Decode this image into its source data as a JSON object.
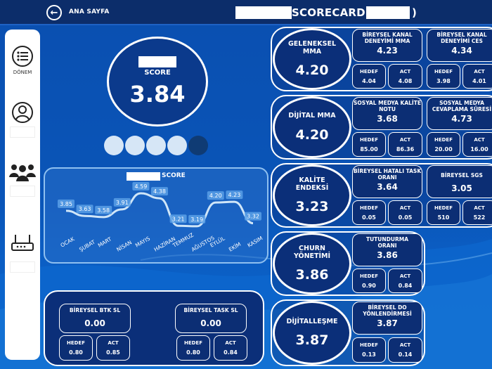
{
  "header": {
    "back_label": "ANA SAYFA",
    "title_text": "SCORECARD (",
    "title_close": ")"
  },
  "sidebar": {
    "items": [
      {
        "label": "DÖNEM",
        "icon": "list-icon"
      },
      {
        "label": "",
        "icon": "user-icon"
      },
      {
        "label": "",
        "icon": "team-icon"
      },
      {
        "label": "",
        "icon": "router-icon"
      }
    ]
  },
  "score": {
    "label": "SCORE",
    "value": "3.84"
  },
  "progress_dots": {
    "filled": 4,
    "total": 5
  },
  "chart": {
    "title": "SCORE"
  },
  "chart_data": {
    "type": "line",
    "title": "SCORE",
    "categories": [
      "OCAK",
      "ŞUBAT",
      "MART",
      "NİSAN",
      "MAYIS",
      "HAZİRAN",
      "TEMMUZ",
      "AĞUSTOS",
      "EYLÜL",
      "EKİM",
      "KASIM"
    ],
    "values": [
      3.85,
      3.63,
      3.58,
      3.91,
      4.59,
      4.38,
      3.21,
      3.19,
      4.2,
      4.23,
      3.32
    ],
    "labels": [
      "3.85",
      "3.63",
      "3.58",
      "3.91",
      "4.59",
      "4.38",
      "3.21",
      "3.19",
      "4.20",
      "4.23",
      "3.32"
    ],
    "ylim": [
      2.8,
      4.8
    ],
    "line_color": "#d0e6f8"
  },
  "bottom": {
    "btk": {
      "title": "BİREYSEL BTK SL",
      "value": "0.00",
      "hedef_label": "HEDEF",
      "hedef": "0.80",
      "act_label": "ACT",
      "act": "0.85"
    },
    "task": {
      "title": "BİREYSEL TASK SL",
      "value": "0.00",
      "hedef_label": "HEDEF",
      "hedef": "0.80",
      "act_label": "ACT",
      "act": "0.84"
    }
  },
  "groups": [
    {
      "title": "GELENEKSEL MMA",
      "value": "4.20",
      "cards": [
        {
          "title": "BİREYSEL KANAL DENEYİMİ MMA",
          "value": "4.23",
          "hedef": "4.04",
          "act": "4.08"
        },
        {
          "title": "BİREYSEL KANAL DENEYİMİ CES",
          "value": "4.34",
          "hedef": "3.98",
          "act": "4.01"
        }
      ]
    },
    {
      "title": "DİJİTAL MMA",
      "value": "4.20",
      "cards": [
        {
          "title": "SOSYAL MEDYA KALİTE NOTU",
          "value": "3.68",
          "hedef": "85.00",
          "act": "86.36"
        },
        {
          "title": "SOSYAL MEDYA CEVAPLAMA SÜRESİ",
          "value": "4.73",
          "hedef": "20.00",
          "act": "16.00"
        }
      ]
    },
    {
      "title": "KALİTE ENDEKSİ",
      "value": "3.23",
      "cards": [
        {
          "title": "BİREYSEL HATALI TASK ORANI",
          "value": "3.64",
          "hedef": "0.05",
          "act": "0.05"
        },
        {
          "title": "BİREYSEL SGS",
          "value": "3.05",
          "hedef": "510",
          "act": "522"
        }
      ]
    },
    {
      "title": "CHURN YÖNETİMİ",
      "value": "3.86",
      "cards": [
        {
          "title": "TUTUNDURMA ORANI",
          "value": "3.86",
          "hedef": "0.90",
          "act": "0.84"
        }
      ]
    },
    {
      "title": "DİJİTALLEŞME",
      "value": "3.87",
      "cards": [
        {
          "title": "BİREYSEL DO YÖNLENDİRMESİ",
          "value": "3.87",
          "hedef": "0.13",
          "act": "0.14"
        }
      ]
    }
  ],
  "kpi_labels": {
    "hedef": "HEDEF",
    "act": "ACT"
  }
}
